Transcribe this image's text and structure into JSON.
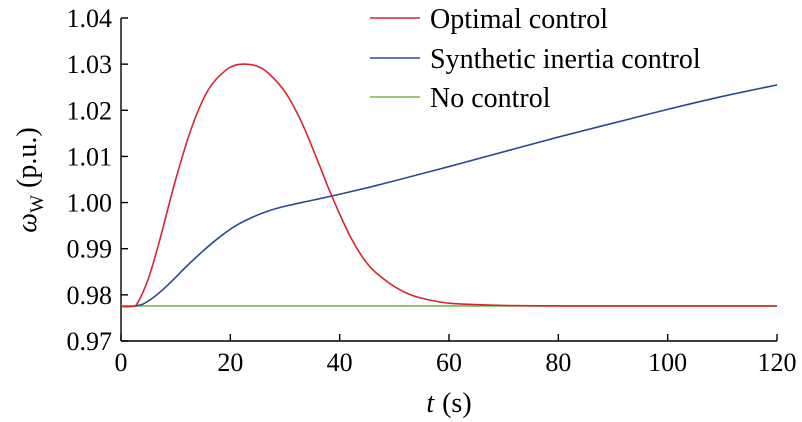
{
  "chart_data": {
    "type": "line",
    "title": "",
    "xlabel": "t (s)",
    "xlabel_var": "t",
    "xlabel_unit": "(s)",
    "ylabel": "ωW (p.u.)",
    "ylabel_symbol": "ω",
    "ylabel_subscript": "W",
    "ylabel_unit": "(p.u.)",
    "xlim": [
      0,
      120
    ],
    "ylim": [
      0.97,
      1.04
    ],
    "xticks": [
      0,
      20,
      40,
      60,
      80,
      100,
      120
    ],
    "xtick_labels": [
      "0",
      "20",
      "40",
      "60",
      "80",
      "100",
      "120"
    ],
    "yticks": [
      0.97,
      0.98,
      0.99,
      1.0,
      1.01,
      1.02,
      1.03,
      1.04
    ],
    "ytick_labels": [
      "0.97",
      "0.98",
      "0.99",
      "1.00",
      "1.01",
      "1.02",
      "1.03",
      "1.04"
    ],
    "grid": false,
    "legend_position": "top-right",
    "series": [
      {
        "name": "Optimal control",
        "color": "#d7262f",
        "x": [
          0,
          2,
          3,
          5,
          7,
          10,
          13,
          16,
          19,
          21,
          23,
          25,
          27,
          30,
          33,
          36,
          38,
          40,
          42,
          44,
          46,
          48,
          50,
          53,
          56,
          60,
          65,
          70,
          80,
          90,
          100,
          110,
          120
        ],
        "y": [
          0.9775,
          0.9775,
          0.9782,
          0.9835,
          0.9915,
          1.005,
          1.0165,
          1.0245,
          1.0285,
          1.0298,
          1.03,
          1.0295,
          1.028,
          1.024,
          1.0175,
          1.009,
          1.003,
          0.9975,
          0.9925,
          0.9885,
          0.9855,
          0.9835,
          0.9818,
          0.98,
          0.979,
          0.9782,
          0.9779,
          0.9777,
          0.9776,
          0.9776,
          0.9776,
          0.9776,
          0.9776
        ]
      },
      {
        "name": "Synthetic inertia control",
        "color": "#2b4b8f",
        "x": [
          0,
          2,
          4,
          6,
          8,
          10,
          12,
          15,
          18,
          21,
          24,
          27,
          30,
          35,
          40,
          45,
          50,
          60,
          70,
          80,
          90,
          100,
          110,
          120
        ],
        "y": [
          0.9775,
          0.9775,
          0.978,
          0.9795,
          0.9815,
          0.9838,
          0.9862,
          0.9895,
          0.9925,
          0.995,
          0.9968,
          0.9982,
          0.9992,
          1.0005,
          1.0018,
          1.0032,
          1.0047,
          1.0078,
          1.011,
          1.0142,
          1.0172,
          1.0202,
          1.023,
          1.0255
        ]
      },
      {
        "name": "No control",
        "color": "#72b84a",
        "x": [
          0,
          30,
          60,
          90,
          120
        ],
        "y": [
          0.9776,
          0.9776,
          0.9776,
          0.9776,
          0.9776
        ]
      }
    ]
  }
}
